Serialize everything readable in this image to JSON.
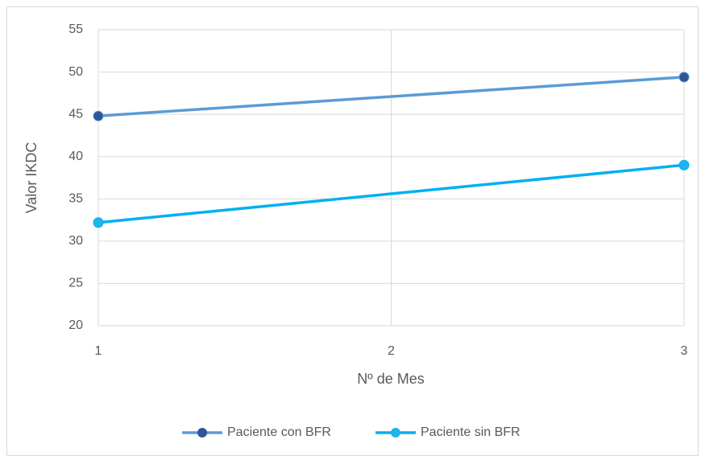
{
  "chart_data": {
    "type": "line",
    "x_label": "Nº de Mes",
    "y_label": "Valor IKDC",
    "x": [
      1,
      3
    ],
    "series": [
      {
        "name": "Paciente con BFR",
        "color": "#5b9bd5",
        "marker_color": "#2f5597",
        "values": [
          44.8,
          49.4
        ]
      },
      {
        "name": "Paciente sin BFR",
        "color": "#00b0f0",
        "marker_color": "#1fb4ea",
        "values": [
          32.2,
          39.0
        ]
      }
    ],
    "xlim": [
      1,
      3
    ],
    "xticks": [
      1,
      2,
      3
    ],
    "ylim": [
      20,
      55
    ],
    "yticks": [
      20,
      25,
      30,
      35,
      40,
      45,
      50,
      55
    ],
    "grid": true,
    "legend": "bottom"
  }
}
